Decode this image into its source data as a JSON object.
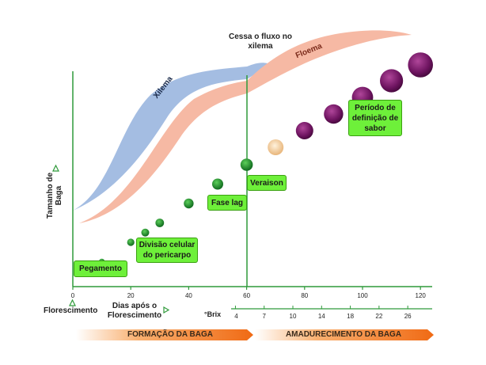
{
  "annotations": {
    "flow_stop": "Cessa o fluxo no xilema",
    "xylem": "Xilema",
    "phloem": "Floema"
  },
  "stages": {
    "fruit_set": "Pegamento",
    "cell_division": "Divisão celular do pericarpo",
    "lag_phase": "Fase lag",
    "veraison": "Veraison",
    "flavor_period": "Período de definição de sabor"
  },
  "axes": {
    "y_label": "Tamanho de Baga",
    "x_label": "Dias após o Florescimento",
    "flowering": "Florescimento",
    "brix_label": "°Brix",
    "days_ticks": [
      "0",
      "20",
      "40",
      "60",
      "80",
      "100",
      "120"
    ],
    "brix_ticks": [
      "4",
      "7",
      "10",
      "14",
      "18",
      "22",
      "26"
    ]
  },
  "phases": {
    "formation": "FORMAÇÃO DA BAGA",
    "ripening": "AMADURECIMENTO DA BAGA"
  },
  "colors": {
    "xylem": "#a4bde2",
    "phloem": "#f6b9a4",
    "green_berry": "#1f8a2e",
    "purple_berry": "#7a1a66",
    "veraison_berry": "#f3cfa0",
    "axis_green": "#2f9a3a",
    "label_box": "#6ef03a",
    "phase_bar": "#f07a1e"
  },
  "berries": [
    {
      "day": 10,
      "type": "green"
    },
    {
      "day": 20,
      "type": "green"
    },
    {
      "day": 25,
      "type": "green"
    },
    {
      "day": 30,
      "type": "green"
    },
    {
      "day": 40,
      "type": "green"
    },
    {
      "day": 50,
      "type": "green"
    },
    {
      "day": 60,
      "type": "green"
    },
    {
      "day": 70,
      "type": "veraison"
    },
    {
      "day": 80,
      "type": "purple"
    },
    {
      "day": 90,
      "type": "purple"
    },
    {
      "day": 100,
      "type": "purple"
    },
    {
      "day": 110,
      "type": "purple"
    },
    {
      "day": 120,
      "type": "purple"
    }
  ]
}
